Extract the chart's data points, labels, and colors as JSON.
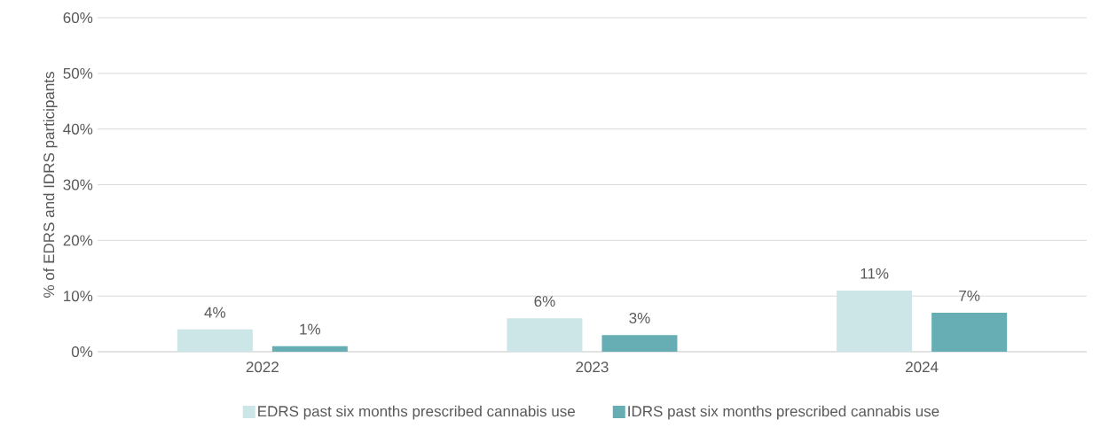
{
  "chart_data": {
    "type": "bar",
    "ylabel": "% of EDRS and IDRS participants",
    "categories": [
      "2022",
      "2023",
      "2024"
    ],
    "series": [
      {
        "name": "EDRS past six months prescribed cannabis use",
        "color": "#cce5e6",
        "values": [
          4,
          6,
          11
        ],
        "value_labels": [
          "4%",
          "6%",
          "11%"
        ]
      },
      {
        "name": "IDRS past six months prescribed cannabis use",
        "color": "#66aeb3",
        "values": [
          1,
          3,
          7
        ],
        "value_labels": [
          "1%",
          "3%",
          "7%"
        ]
      }
    ],
    "ylim": [
      0,
      60
    ],
    "yticks": [
      {
        "value": 0,
        "label": "0%"
      },
      {
        "value": 10,
        "label": "10%"
      },
      {
        "value": 20,
        "label": "20%"
      },
      {
        "value": 30,
        "label": "30%"
      },
      {
        "value": 40,
        "label": "40%"
      },
      {
        "value": 50,
        "label": "50%"
      },
      {
        "value": 60,
        "label": "60%"
      }
    ],
    "grid": "y",
    "legend": "bottom"
  }
}
